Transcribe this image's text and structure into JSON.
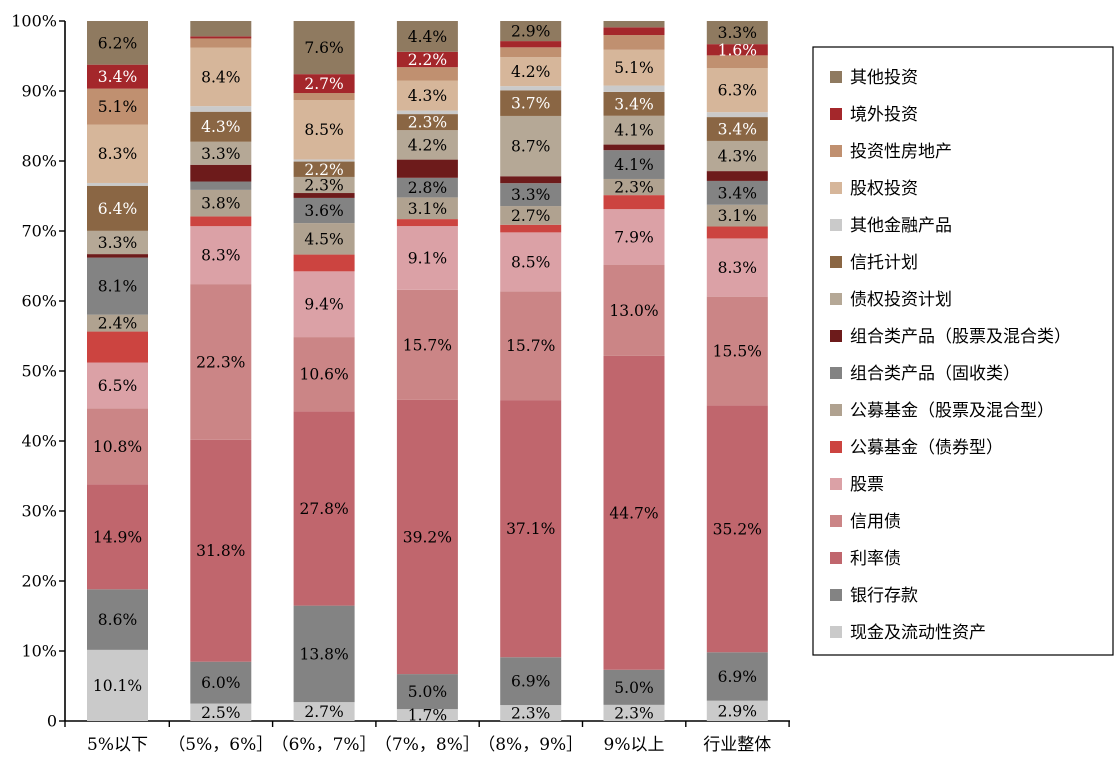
{
  "chart_data": {
    "type": "bar",
    "stacked": true,
    "ylim": [
      0,
      100
    ],
    "yticks": [
      0,
      10,
      20,
      30,
      40,
      50,
      60,
      70,
      80,
      90,
      100
    ],
    "ytick_labels": [
      "0",
      "10%",
      "20%",
      "30%",
      "40%",
      "50%",
      "60%",
      "70%",
      "80%",
      "90%",
      "100%"
    ],
    "grid": false,
    "legend_position": "right",
    "categories": [
      "5%以下",
      "（5%，6%］",
      "（6%，7%］",
      "（7%，8%］",
      "（8%，9%］",
      "9%以上",
      "行业整体"
    ],
    "series": [
      {
        "name": "现金及流动性资产",
        "color": "#cacaca",
        "label_color": "#000000",
        "values": [
          10.1,
          2.5,
          2.7,
          1.7,
          2.3,
          2.3,
          2.9
        ],
        "labels": [
          "10.1%",
          "2.5%",
          "2.7%",
          "1.7%",
          "2.3%",
          "2.3%",
          "2.9%"
        ]
      },
      {
        "name": "银行存款",
        "color": "#838383",
        "label_color": "#000000",
        "values": [
          8.6,
          6.0,
          13.8,
          5.0,
          6.9,
          5.0,
          6.9
        ],
        "labels": [
          "8.6%",
          "6.0%",
          "13.8%",
          "5.0%",
          "6.9%",
          "5.0%",
          "6.9%"
        ]
      },
      {
        "name": "利率债",
        "color": "#c0666d",
        "label_color": "#000000",
        "values": [
          14.9,
          31.8,
          27.8,
          39.2,
          37.1,
          44.7,
          35.2
        ],
        "labels": [
          "14.9%",
          "31.8%",
          "27.8%",
          "39.2%",
          "37.1%",
          "44.7%",
          "35.2%"
        ]
      },
      {
        "name": "信用债",
        "color": "#cb8586",
        "label_color": "#000000",
        "values": [
          10.8,
          22.3,
          10.6,
          15.7,
          15.7,
          13.0,
          15.5
        ],
        "labels": [
          "10.8%",
          "22.3%",
          "10.6%",
          "15.7%",
          "15.7%",
          "13.0%",
          "15.5%"
        ]
      },
      {
        "name": "股票",
        "color": "#dba1a6",
        "label_color": "#000000",
        "values": [
          6.5,
          8.3,
          9.4,
          9.1,
          8.5,
          7.9,
          8.3
        ],
        "labels": [
          "6.5%",
          "8.3%",
          "9.4%",
          "9.1%",
          "8.5%",
          "7.9%",
          "8.3%"
        ]
      },
      {
        "name": "公募基金（债券型）",
        "color": "#cc4440",
        "label_color": "#000000",
        "values": [
          4.4,
          1.4,
          2.4,
          1.0,
          1.1,
          2.0,
          1.7
        ],
        "labels": [
          "",
          "",
          "",
          "",
          "",
          "",
          ""
        ]
      },
      {
        "name": "公募基金（股票及混合型）",
        "color": "#b0a290",
        "label_color": "#000000",
        "values": [
          2.4,
          3.8,
          4.5,
          3.1,
          2.7,
          2.3,
          3.1
        ],
        "labels": [
          "2.4%",
          "3.8%",
          "4.5%",
          "3.1%",
          "2.7%",
          "2.3%",
          "3.1%"
        ]
      },
      {
        "name": "组合类产品（固收类）",
        "color": "#838383",
        "label_color": "#000000",
        "values": [
          8.1,
          1.2,
          3.6,
          2.8,
          3.3,
          4.1,
          3.4
        ],
        "labels": [
          "8.1%",
          "",
          "3.6%",
          "2.8%",
          "3.3%",
          "4.1%",
          "3.4%"
        ]
      },
      {
        "name": "组合类产品（股票及混合类）",
        "color": "#6d1b1b",
        "label_color": "#ffffff",
        "values": [
          0.5,
          2.4,
          0.7,
          2.6,
          1.0,
          0.8,
          1.4
        ],
        "labels": [
          "",
          "",
          "",
          "",
          "",
          "",
          ""
        ]
      },
      {
        "name": "债权投资计划",
        "color": "#b5a896",
        "label_color": "#000000",
        "values": [
          3.3,
          3.3,
          2.3,
          4.2,
          8.7,
          4.1,
          4.3
        ],
        "labels": [
          "3.3%",
          "3.3%",
          "2.3%",
          "4.2%",
          "8.7%",
          "4.1%",
          "4.3%"
        ]
      },
      {
        "name": "信托计划",
        "color": "#8a6644",
        "label_color": "#ffffff",
        "values": [
          6.4,
          4.3,
          2.2,
          2.3,
          3.7,
          3.4,
          3.4
        ],
        "labels": [
          "6.4%",
          "4.3%",
          "2.2%",
          "2.3%",
          "3.7%",
          "3.4%",
          "3.4%"
        ]
      },
      {
        "name": "其他金融产品",
        "color": "#cacaca",
        "label_color": "#000000",
        "values": [
          0.4,
          0.8,
          0.3,
          0.5,
          0.6,
          0.9,
          0.7
        ],
        "labels": [
          "",
          "",
          "",
          "",
          "",
          "",
          ""
        ]
      },
      {
        "name": "股权投资",
        "color": "#d6b69a",
        "label_color": "#000000",
        "values": [
          8.3,
          8.4,
          8.5,
          4.3,
          4.2,
          5.1,
          6.3
        ],
        "labels": [
          "8.3%",
          "8.4%",
          "8.5%",
          "4.3%",
          "4.2%",
          "5.1%",
          "6.3%"
        ]
      },
      {
        "name": "投资性房地产",
        "color": "#c09070",
        "label_color": "#000000",
        "values": [
          5.1,
          1.3,
          1.0,
          1.9,
          1.4,
          2.1,
          1.8
        ],
        "labels": [
          "5.1%",
          "",
          "",
          "",
          "",
          "",
          ""
        ]
      },
      {
        "name": "境外投资",
        "color": "#a4272b",
        "label_color": "#ffffff",
        "values": [
          3.4,
          0.3,
          2.7,
          2.2,
          0.9,
          1.1,
          1.6
        ],
        "labels": [
          "3.4%",
          "",
          "2.7%",
          "2.2%",
          "",
          "",
          "1.6%"
        ]
      },
      {
        "name": "其他投资",
        "color": "#8f7a60",
        "label_color": "#000000",
        "values": [
          6.2,
          2.2,
          7.6,
          4.4,
          2.9,
          0.9,
          3.3
        ],
        "labels": [
          "6.2%",
          "",
          "7.6%",
          "4.4%",
          "2.9%",
          "",
          "3.3%"
        ]
      }
    ]
  }
}
